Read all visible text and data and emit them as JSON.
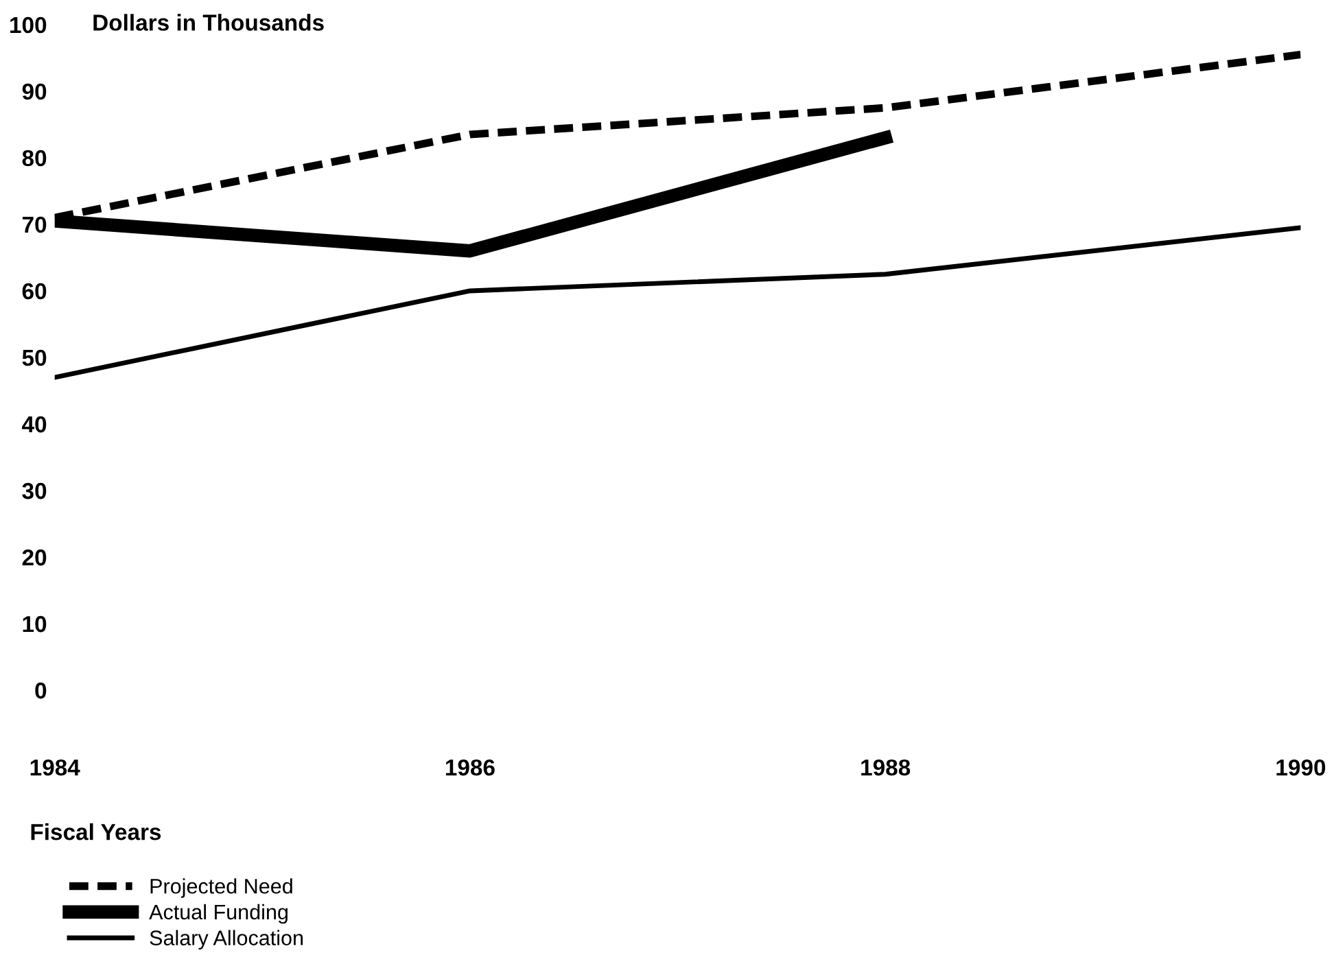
{
  "chart_data": {
    "type": "line",
    "ylabel": "Dollars in Thousands",
    "xlabel": "Fiscal Years",
    "x": [
      1984,
      1986,
      1988,
      1990
    ],
    "xlim": [
      1984,
      1990
    ],
    "xticks": [
      1984,
      1986,
      1988,
      1990
    ],
    "ylim": [
      0,
      100
    ],
    "yticks": [
      0,
      10,
      20,
      30,
      40,
      50,
      60,
      70,
      80,
      90,
      100
    ],
    "grid": false,
    "legend": "bottom left",
    "series": [
      {
        "name": "Projected Need",
        "color": "#000000",
        "line_style": "dashed",
        "values": [
          71,
          83.5,
          87.5,
          95.5
        ]
      },
      {
        "name": "Actual Funding",
        "color": "#000000",
        "line_style": "solid",
        "values": [
          70.5,
          66,
          83,
          null
        ]
      },
      {
        "name": "Salary Allocation",
        "color": "#000000",
        "line_style": "solid",
        "values": [
          47,
          60,
          62.5,
          69.5
        ]
      }
    ]
  }
}
